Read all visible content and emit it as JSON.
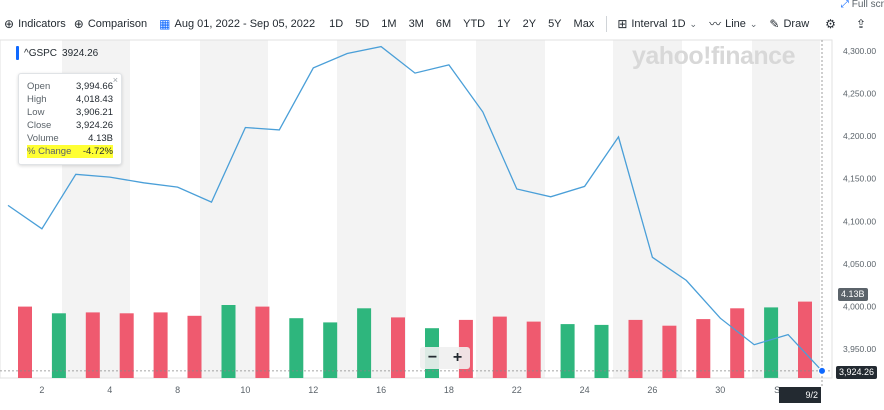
{
  "full_screen": {
    "label": "Full scr"
  },
  "toolbar": {
    "indicators": "Indicators",
    "comparison": "Comparison",
    "date_range": "Aug 01, 2022 - Sep 05, 2022",
    "ranges": [
      "1D",
      "5D",
      "1M",
      "3M",
      "6M",
      "YTD",
      "1Y",
      "2Y",
      "5Y",
      "Max"
    ],
    "interval_label": "Interval",
    "interval_value": "1D",
    "chart_type": "Line",
    "draw": "Draw"
  },
  "ticker": {
    "symbol": "^GSPC",
    "price": "3924.26"
  },
  "tooltip": {
    "rows": [
      {
        "label": "Open",
        "value": "3,994.66"
      },
      {
        "label": "High",
        "value": "4,018.43"
      },
      {
        "label": "Low",
        "value": "3,906.21"
      },
      {
        "label": "Close",
        "value": "3,924.26"
      },
      {
        "label": "Volume",
        "value": "4.13B"
      },
      {
        "label": "% Change",
        "value": "-4.72%"
      }
    ],
    "close": "×"
  },
  "watermark": "yahoo!finance",
  "badges": {
    "volume": "4.13B",
    "price": "3,924.26",
    "date": "9/2"
  },
  "zoom": {
    "minus": "−",
    "plus": "+"
  },
  "colors": {
    "line": "#4a9fd8",
    "up": "#2eb67d",
    "down": "#ef5a6f",
    "accent": "#0f69ff",
    "highlight": "#ffff33"
  },
  "chart_data": {
    "type": "line",
    "x": [
      "Aug 1",
      "Aug 2",
      "Aug 3",
      "Aug 4",
      "Aug 5",
      "Aug 8",
      "Aug 9",
      "Aug 10",
      "Aug 11",
      "Aug 12",
      "Aug 15",
      "Aug 16",
      "Aug 17",
      "Aug 18",
      "Aug 19",
      "Aug 22",
      "Aug 23",
      "Aug 24",
      "Aug 25",
      "Aug 26",
      "Aug 29",
      "Aug 30",
      "Aug 31",
      "Sep 1",
      "Sep 2"
    ],
    "close": [
      4118.6,
      4091.2,
      4155.2,
      4151.9,
      4145.2,
      4140.1,
      4122.5,
      4210.2,
      4207.3,
      4280.2,
      4297.1,
      4305.2,
      4274.0,
      4283.7,
      4228.5,
      4137.9,
      4128.7,
      4141.0,
      4199.1,
      4057.7,
      4030.6,
      3986.2,
      3955.0,
      3966.9,
      3924.3
    ],
    "volume_direction": [
      "down",
      "up",
      "down",
      "down",
      "down",
      "down",
      "up",
      "down",
      "up",
      "up",
      "up",
      "down",
      "up",
      "down",
      "down",
      "down",
      "up",
      "up",
      "down",
      "down",
      "down",
      "down",
      "up",
      "down"
    ],
    "volume_relative": [
      0.86,
      0.78,
      0.79,
      0.78,
      0.79,
      0.75,
      0.88,
      0.86,
      0.72,
      0.67,
      0.84,
      0.73,
      0.6,
      0.7,
      0.74,
      0.68,
      0.65,
      0.64,
      0.7,
      0.63,
      0.71,
      0.84,
      0.85,
      0.92
    ],
    "x_ticks": [
      "2",
      "4",
      "8",
      "10",
      "12",
      "16",
      "18",
      "22",
      "24",
      "26",
      "30",
      "Sep"
    ],
    "y_ticks": [
      "4,300.00",
      "4,250.00",
      "4,200.00",
      "4,150.00",
      "4,100.00",
      "4,050.00",
      "4,000.00",
      "3,950.00"
    ],
    "ylim": [
      3920,
      4320
    ]
  }
}
